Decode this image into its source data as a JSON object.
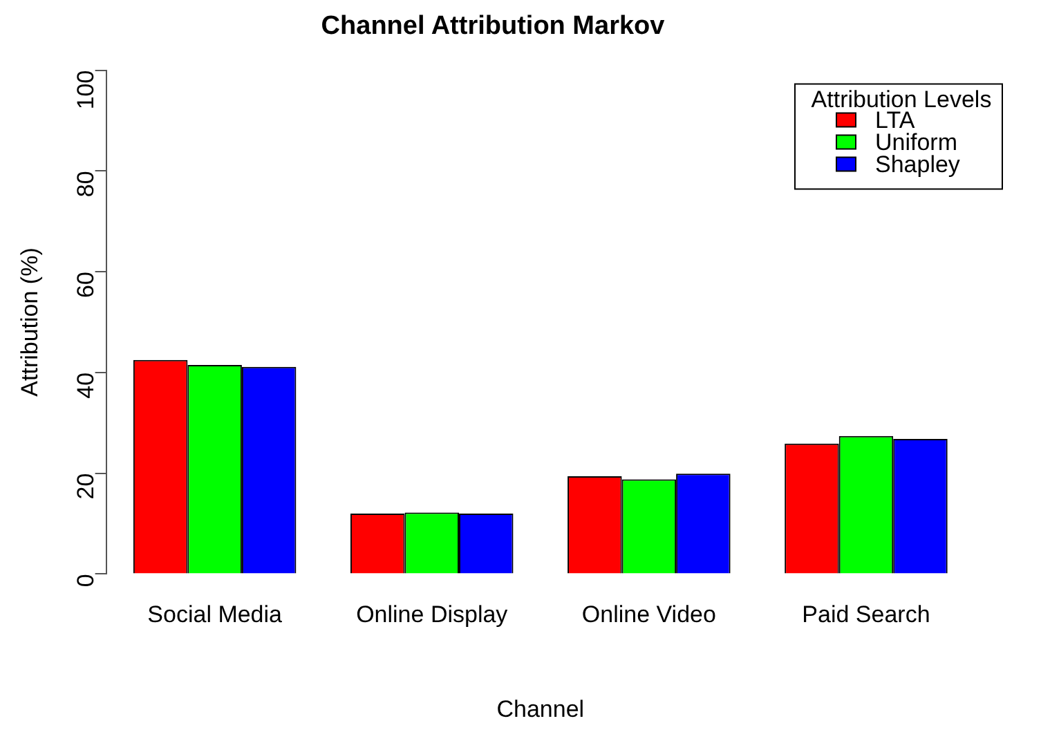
{
  "chart_data": {
    "type": "bar",
    "title": "Channel Attribution Markov",
    "xlabel": "Channel",
    "ylabel": "Attribution (%)",
    "legend_title": "Attribution Levels",
    "categories": [
      "Social Media",
      "Online Display",
      "Online Video",
      "Paid Search"
    ],
    "series": [
      {
        "name": "LTA",
        "color": "#ff0000",
        "values": [
          42.5,
          12.0,
          19.4,
          25.9
        ]
      },
      {
        "name": "Uniform",
        "color": "#00ff00",
        "values": [
          41.5,
          12.2,
          18.8,
          27.4
        ]
      },
      {
        "name": "Shapley",
        "color": "#0000ff",
        "values": [
          41.1,
          12.0,
          19.9,
          26.8
        ]
      }
    ],
    "ylim": [
      0,
      100
    ],
    "yticks": [
      0,
      20,
      40,
      60,
      80,
      100
    ],
    "grid": false,
    "legend": "top right"
  }
}
